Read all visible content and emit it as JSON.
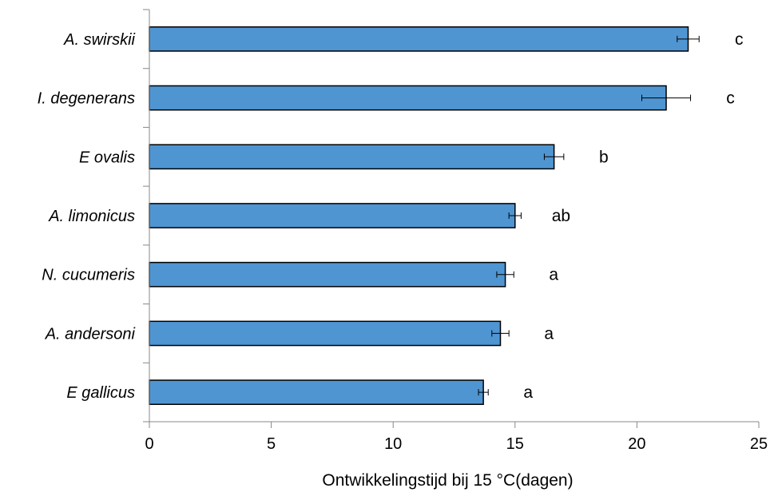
{
  "chart_data": {
    "type": "bar",
    "orientation": "horizontal",
    "categories": [
      "A. swirskii",
      "I. degenerans",
      "E ovalis",
      "A. limonicus",
      "N. cucumeris",
      "A. andersoni",
      "E gallicus"
    ],
    "values": [
      22.1,
      21.2,
      16.6,
      15.0,
      14.6,
      14.4,
      13.7
    ],
    "errors": [
      0.45,
      1.0,
      0.4,
      0.25,
      0.35,
      0.35,
      0.2
    ],
    "significance": [
      "c",
      "c",
      "b",
      "ab",
      "a",
      "a",
      "a"
    ],
    "xlabel": "Ontwikkelingstijd bij 15 °C(dagen)",
    "ylabel": "",
    "title": "",
    "xlim": [
      0,
      25
    ],
    "xticks": [
      0,
      5,
      10,
      15,
      20,
      25
    ],
    "grid": false,
    "bar_color": "#4F95D2",
    "bar_edge_color": "#000000"
  }
}
